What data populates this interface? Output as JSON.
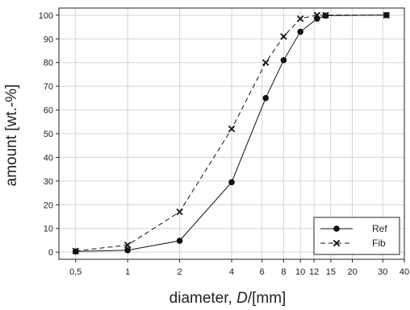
{
  "chart_data": {
    "type": "line",
    "x_scale": "log",
    "xlim": [
      0.4,
      40
    ],
    "ylim": [
      -3,
      103
    ],
    "grid": true,
    "legend_position": "bottom-right",
    "xlabel": {
      "prefix": "diameter, ",
      "italic": "D",
      "suffix": "/[mm]"
    },
    "ylabel": "amount [wt.-%]",
    "x_ticks": [
      {
        "value": 0.5,
        "label": "0,5"
      },
      {
        "value": 1,
        "label": "1"
      },
      {
        "value": 2,
        "label": "2"
      },
      {
        "value": 4,
        "label": "4"
      },
      {
        "value": 6,
        "label": "6"
      },
      {
        "value": 8,
        "label": "8"
      },
      {
        "value": 10,
        "label": "10"
      },
      {
        "value": 12,
        "label": "12"
      },
      {
        "value": 15,
        "label": "15"
      },
      {
        "value": 20,
        "label": "20"
      },
      {
        "value": 30,
        "label": "30"
      },
      {
        "value": 40,
        "label": "40"
      }
    ],
    "y_ticks": [
      0,
      10,
      20,
      30,
      40,
      50,
      60,
      70,
      80,
      90,
      100
    ],
    "series": [
      {
        "name": "Ref",
        "marker": "circle",
        "line_style": "solid",
        "color": "#111111",
        "x": [
          0.5,
          1,
          2,
          4,
          6.3,
          8,
          10,
          12.5,
          14,
          31.5
        ],
        "y": [
          0.3,
          0.8,
          4.8,
          29.5,
          65,
          81,
          93,
          98.5,
          99.8,
          100
        ]
      },
      {
        "name": "Fib",
        "marker": "x",
        "line_style": "dashed",
        "color": "#111111",
        "x": [
          0.5,
          1,
          2,
          4,
          6.3,
          8,
          10,
          12.5,
          14,
          31.5
        ],
        "y": [
          0.5,
          3,
          17,
          52,
          80,
          91,
          98.5,
          100,
          100,
          100
        ]
      }
    ]
  }
}
